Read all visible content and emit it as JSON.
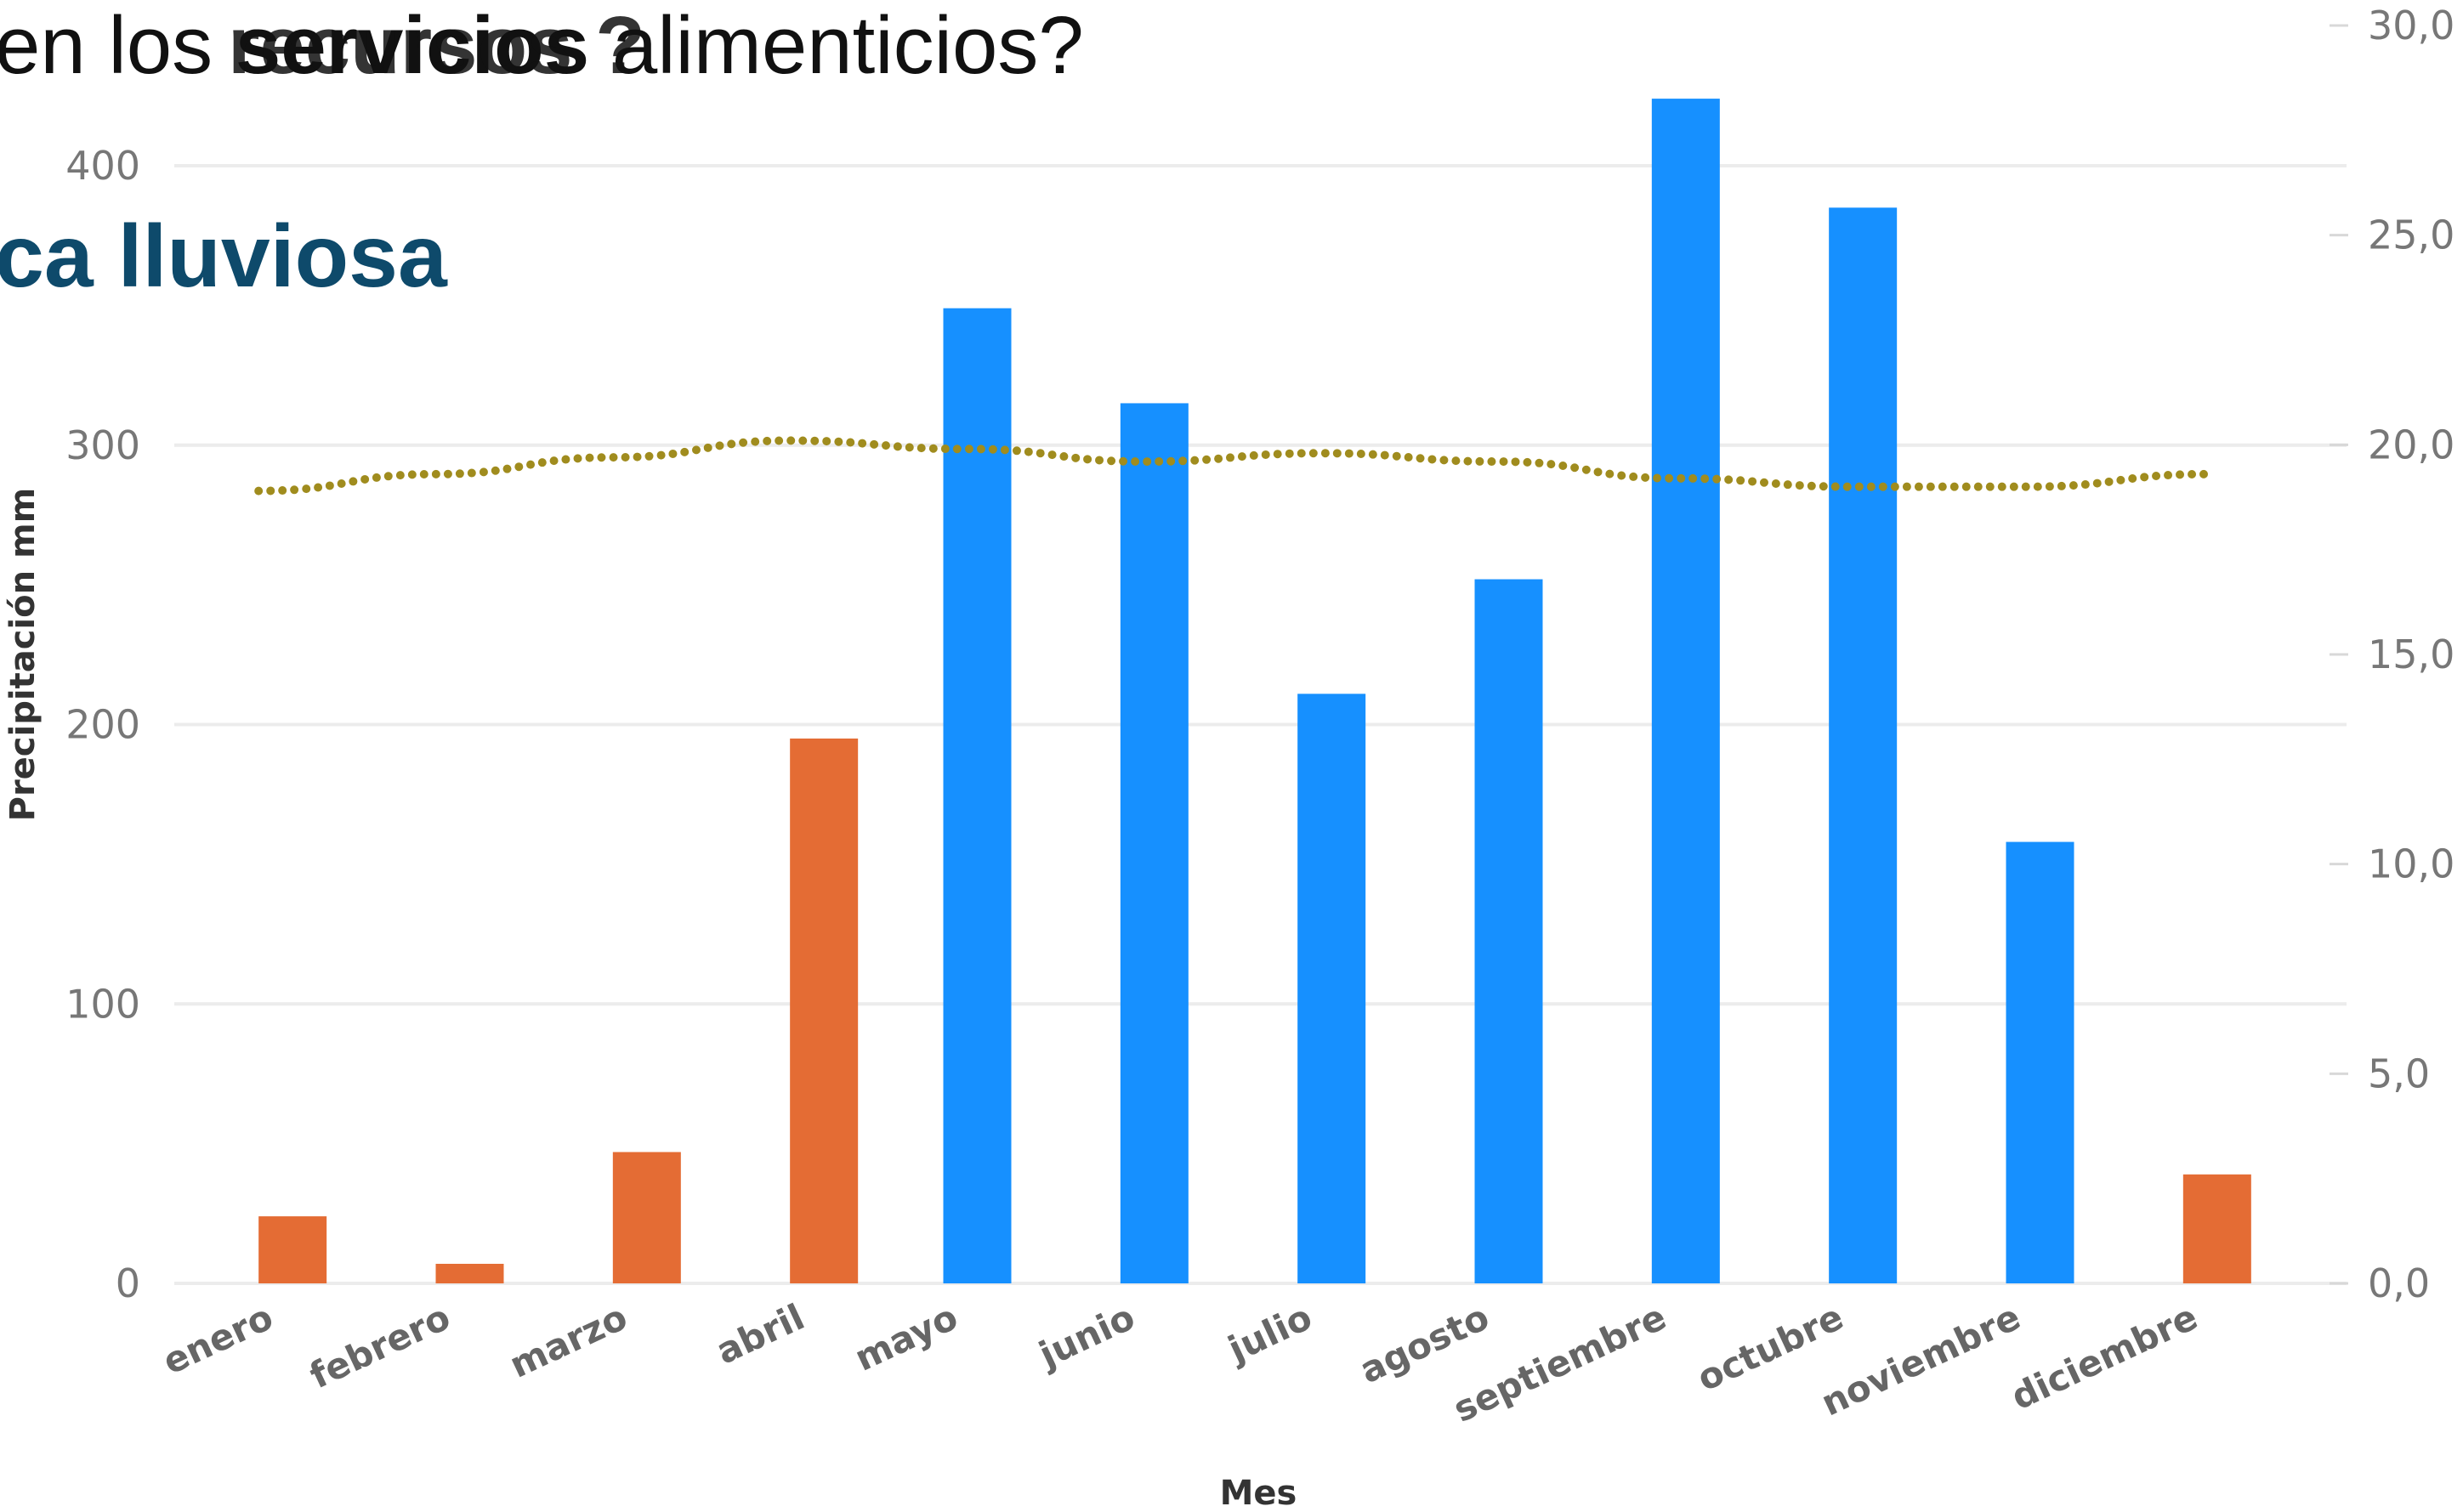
{
  "header": {
    "question_prefix": "en los ",
    "question_bold": "servicios",
    "question_suffix": " alimenticios?",
    "overlay_word": "recursos ?",
    "subtitle": "ca lluviosa"
  },
  "chart_data": {
    "type": "bar",
    "categories": [
      "enero",
      "febrero",
      "marzo",
      "abril",
      "mayo",
      "junio",
      "julio",
      "agosto",
      "septiembre",
      "octubre",
      "noviembre",
      "diciembre"
    ],
    "series": [
      {
        "values": [
          24,
          7,
          47,
          195,
          349,
          315,
          211,
          252,
          424,
          385,
          158,
          39
        ],
        "colors": [
          "#e46c34",
          "#e46c34",
          "#e46c34",
          "#e46c34",
          "#1690ff",
          "#1690ff",
          "#1690ff",
          "#1690ff",
          "#1690ff",
          "#1690ff",
          "#1690ff",
          "#e46c34"
        ],
        "axis": "left"
      },
      {
        "type": "line",
        "style": "dotted",
        "color": "#a08c1e",
        "values": [
          18.9,
          19.3,
          19.7,
          20.1,
          19.9,
          19.6,
          19.8,
          19.6,
          19.2,
          19.0,
          19.0,
          19.3
        ],
        "axis": "right"
      }
    ],
    "xlabel": "Mes",
    "ylabel": "Precipitación mm",
    "ylim": [
      0,
      440
    ],
    "yticks": [
      0,
      100,
      200,
      300,
      400
    ],
    "ylim_right": [
      0,
      30
    ],
    "yticks_right": [
      "0,0",
      "5,0",
      "10,0",
      "15,0",
      "20,0",
      "25,0",
      "30,0"
    ],
    "grid": true
  }
}
